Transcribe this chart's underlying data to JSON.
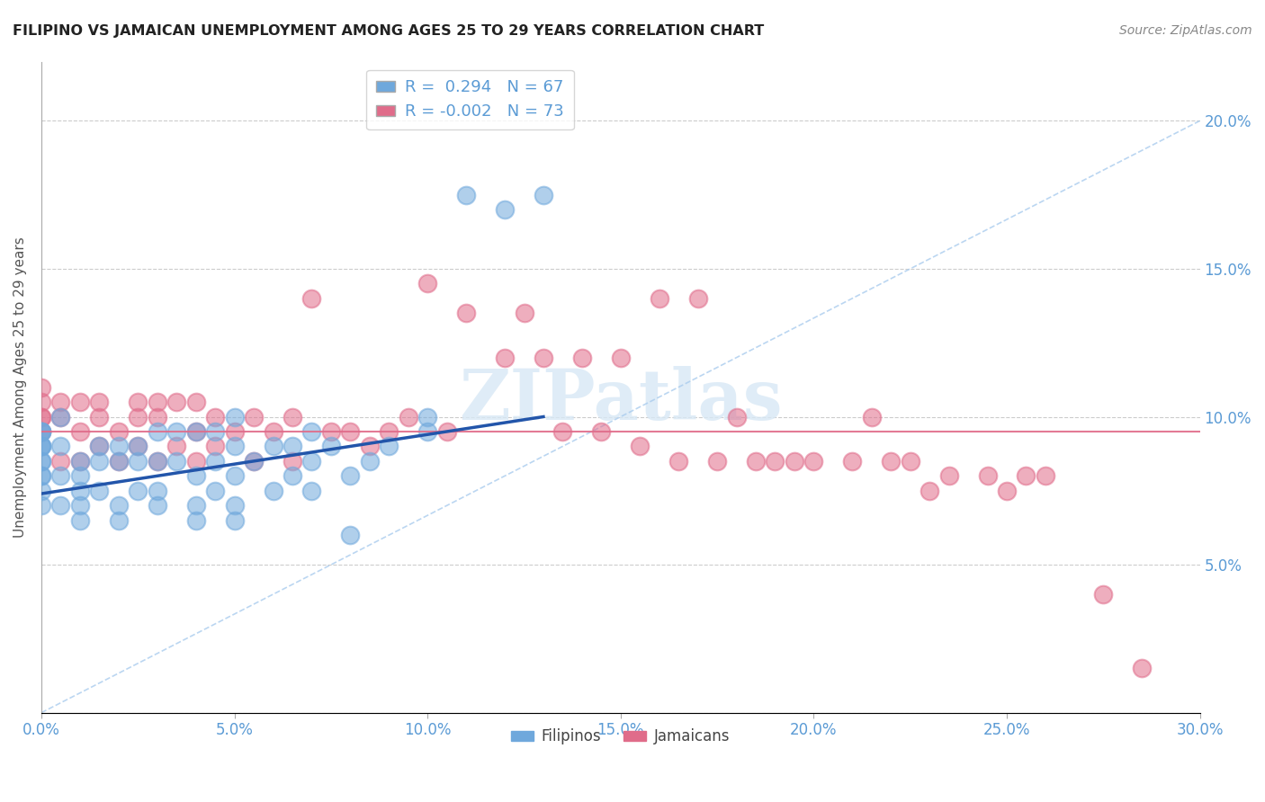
{
  "title": "FILIPINO VS JAMAICAN UNEMPLOYMENT AMONG AGES 25 TO 29 YEARS CORRELATION CHART",
  "source": "Source: ZipAtlas.com",
  "ylabel": "Unemployment Among Ages 25 to 29 years",
  "xlim": [
    0.0,
    0.3
  ],
  "ylim": [
    0.0,
    0.22
  ],
  "xticks": [
    0.0,
    0.05,
    0.1,
    0.15,
    0.2,
    0.25,
    0.3
  ],
  "yticks": [
    0.0,
    0.05,
    0.1,
    0.15,
    0.2
  ],
  "xtick_labels": [
    "0.0%",
    "5.0%",
    "10.0%",
    "15.0%",
    "20.0%",
    "25.0%",
    "30.0%"
  ],
  "ytick_labels_right": [
    "",
    "5.0%",
    "10.0%",
    "15.0%",
    "20.0%"
  ],
  "filipino_R": 0.294,
  "filipino_N": 67,
  "jamaican_R": -0.002,
  "jamaican_N": 73,
  "filipino_color": "#6fa8dc",
  "jamaican_color": "#e06c8a",
  "filipino_line_color": "#2255aa",
  "jamaican_line_color": "#e06c8a",
  "diag_color": "#aaccee",
  "axis_label_color": "#5b9bd5",
  "background_color": "#ffffff",
  "watermark": "ZIPatlas",
  "legend_labels": [
    "Filipinos",
    "Jamaicans"
  ],
  "filipino_scatter_x": [
    0.0,
    0.0,
    0.0,
    0.0,
    0.0,
    0.0,
    0.0,
    0.0,
    0.0,
    0.0,
    0.0,
    0.0,
    0.005,
    0.005,
    0.005,
    0.005,
    0.01,
    0.01,
    0.01,
    0.01,
    0.01,
    0.015,
    0.015,
    0.015,
    0.02,
    0.02,
    0.02,
    0.02,
    0.025,
    0.025,
    0.025,
    0.03,
    0.03,
    0.03,
    0.03,
    0.035,
    0.035,
    0.04,
    0.04,
    0.04,
    0.04,
    0.045,
    0.045,
    0.045,
    0.05,
    0.05,
    0.05,
    0.05,
    0.05,
    0.055,
    0.06,
    0.06,
    0.065,
    0.065,
    0.07,
    0.07,
    0.07,
    0.075,
    0.08,
    0.08,
    0.085,
    0.09,
    0.1,
    0.1,
    0.11,
    0.12,
    0.13
  ],
  "filipino_scatter_y": [
    0.07,
    0.075,
    0.08,
    0.08,
    0.085,
    0.085,
    0.09,
    0.09,
    0.09,
    0.095,
    0.095,
    0.095,
    0.07,
    0.08,
    0.09,
    0.1,
    0.065,
    0.07,
    0.075,
    0.08,
    0.085,
    0.075,
    0.085,
    0.09,
    0.065,
    0.07,
    0.085,
    0.09,
    0.075,
    0.085,
    0.09,
    0.07,
    0.075,
    0.085,
    0.095,
    0.085,
    0.095,
    0.065,
    0.07,
    0.08,
    0.095,
    0.075,
    0.085,
    0.095,
    0.065,
    0.07,
    0.08,
    0.09,
    0.1,
    0.085,
    0.075,
    0.09,
    0.08,
    0.09,
    0.075,
    0.085,
    0.095,
    0.09,
    0.06,
    0.08,
    0.085,
    0.09,
    0.095,
    0.1,
    0.175,
    0.17,
    0.175
  ],
  "jamaican_scatter_x": [
    0.0,
    0.0,
    0.0,
    0.0,
    0.0,
    0.005,
    0.005,
    0.005,
    0.01,
    0.01,
    0.01,
    0.015,
    0.015,
    0.015,
    0.02,
    0.02,
    0.025,
    0.025,
    0.025,
    0.03,
    0.03,
    0.03,
    0.035,
    0.035,
    0.04,
    0.04,
    0.04,
    0.045,
    0.045,
    0.05,
    0.055,
    0.055,
    0.06,
    0.065,
    0.065,
    0.07,
    0.075,
    0.08,
    0.085,
    0.09,
    0.095,
    0.1,
    0.105,
    0.11,
    0.12,
    0.125,
    0.13,
    0.135,
    0.14,
    0.145,
    0.15,
    0.155,
    0.16,
    0.165,
    0.17,
    0.175,
    0.18,
    0.185,
    0.19,
    0.195,
    0.2,
    0.21,
    0.215,
    0.22,
    0.225,
    0.23,
    0.235,
    0.245,
    0.25,
    0.255,
    0.26,
    0.275,
    0.285
  ],
  "jamaican_scatter_y": [
    0.095,
    0.1,
    0.1,
    0.105,
    0.11,
    0.085,
    0.1,
    0.105,
    0.085,
    0.095,
    0.105,
    0.09,
    0.1,
    0.105,
    0.085,
    0.095,
    0.09,
    0.1,
    0.105,
    0.085,
    0.1,
    0.105,
    0.09,
    0.105,
    0.085,
    0.095,
    0.105,
    0.09,
    0.1,
    0.095,
    0.085,
    0.1,
    0.095,
    0.085,
    0.1,
    0.14,
    0.095,
    0.095,
    0.09,
    0.095,
    0.1,
    0.145,
    0.095,
    0.135,
    0.12,
    0.135,
    0.12,
    0.095,
    0.12,
    0.095,
    0.12,
    0.09,
    0.14,
    0.085,
    0.14,
    0.085,
    0.1,
    0.085,
    0.085,
    0.085,
    0.085,
    0.085,
    0.1,
    0.085,
    0.085,
    0.075,
    0.08,
    0.08,
    0.075,
    0.08,
    0.08,
    0.04,
    0.015
  ]
}
